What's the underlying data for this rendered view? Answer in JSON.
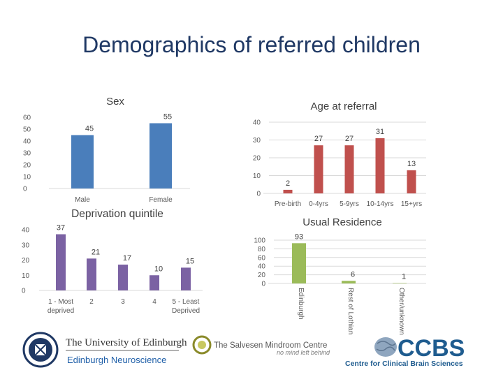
{
  "slide_title": "Demographics of referred children",
  "colors": {
    "title": "#1f3864",
    "sex": "#4a7ebb",
    "age": "#c0504d",
    "depr": "#7b62a3",
    "res": "#9bbb59",
    "grid": "#d9d9d9"
  },
  "chart_data": [
    {
      "id": "sex",
      "type": "bar",
      "title": "Sex",
      "categories": [
        "Male",
        "Female"
      ],
      "values": [
        45,
        55
      ],
      "ylim": [
        0,
        60
      ],
      "yticks": [
        "0",
        "10",
        "20",
        "30",
        "40",
        "50",
        "60"
      ],
      "grid": false
    },
    {
      "id": "age",
      "type": "bar",
      "title": "Age at referral",
      "categories": [
        "Pre-birth",
        "0-4yrs",
        "5-9yrs",
        "10-14yrs",
        "15+yrs"
      ],
      "values": [
        2,
        27,
        27,
        31,
        13
      ],
      "ylim": [
        0,
        40
      ],
      "yticks": [
        "0",
        "10",
        "20",
        "30",
        "40"
      ],
      "grid": true
    },
    {
      "id": "depr",
      "type": "bar",
      "title": "Deprivation quintile",
      "categories": [
        "1 - Most deprived",
        "2",
        "3",
        "4",
        "5 - Least Deprived"
      ],
      "values": [
        37,
        21,
        17,
        10,
        15
      ],
      "ylim": [
        0,
        40
      ],
      "yticks": [
        "0",
        "10",
        "20",
        "30",
        "40"
      ],
      "grid": false
    },
    {
      "id": "res",
      "type": "bar",
      "title": "Usual Residence",
      "categories": [
        "Edinburgh",
        "Rest of Lothian",
        "Other/unknown"
      ],
      "values": [
        93,
        6,
        1
      ],
      "ylim": [
        0,
        100
      ],
      "yticks": [
        "0",
        "20",
        "40",
        "60",
        "80",
        "100"
      ],
      "grid": true
    }
  ],
  "logos": {
    "uoe": "The University of Edinburgh",
    "uoe_sub": "Edinburgh Neuroscience",
    "salvesen": "The Salvesen Mindroom Centre",
    "salvesen_tag": "no mind left behind",
    "ccbs": "CCBS",
    "ccbs_sub": "Centre for Clinical Brain Sciences"
  }
}
